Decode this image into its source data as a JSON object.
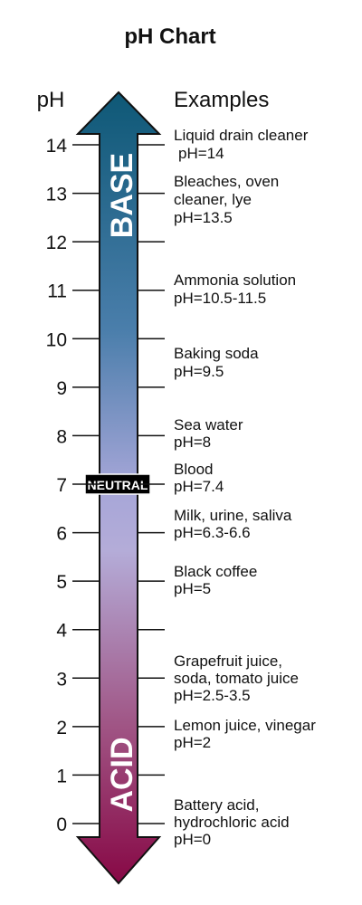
{
  "title": "pH Chart",
  "scale_label": "pH",
  "examples_header": "Examples",
  "ticks": [
    14,
    13,
    12,
    11,
    10,
    9,
    8,
    7,
    6,
    5,
    4,
    3,
    2,
    1,
    0
  ],
  "arrow": {
    "top_label": "BASE",
    "bottom_label": "ACID",
    "middle_label": "NEUTRAL"
  },
  "examples": [
    {
      "lines": [
        "Liquid drain cleaner",
        "pH=14"
      ]
    },
    {
      "lines": [
        "Bleaches, oven",
        "cleaner, lye",
        "pH=13.5"
      ]
    },
    {
      "lines": [
        "Ammonia solution",
        "pH=10.5-11.5"
      ]
    },
    {
      "lines": [
        "Baking soda",
        "pH=9.5"
      ]
    },
    {
      "lines": [
        "Sea water",
        "pH=8"
      ]
    },
    {
      "lines": [
        "Blood",
        "pH=7.4"
      ]
    },
    {
      "lines": [
        "Milk, urine, saliva",
        "pH=6.3-6.6"
      ]
    },
    {
      "lines": [
        "Black coffee",
        "pH=5"
      ]
    },
    {
      "lines": [
        "Grapefruit juice,",
        "soda, tomato juice",
        "pH=2.5-3.5"
      ]
    },
    {
      "lines": [
        "Lemon juice, vinegar",
        "pH=2"
      ]
    },
    {
      "lines": [
        "Battery acid,",
        "hydrochloric acid",
        "pH=0"
      ]
    }
  ]
}
